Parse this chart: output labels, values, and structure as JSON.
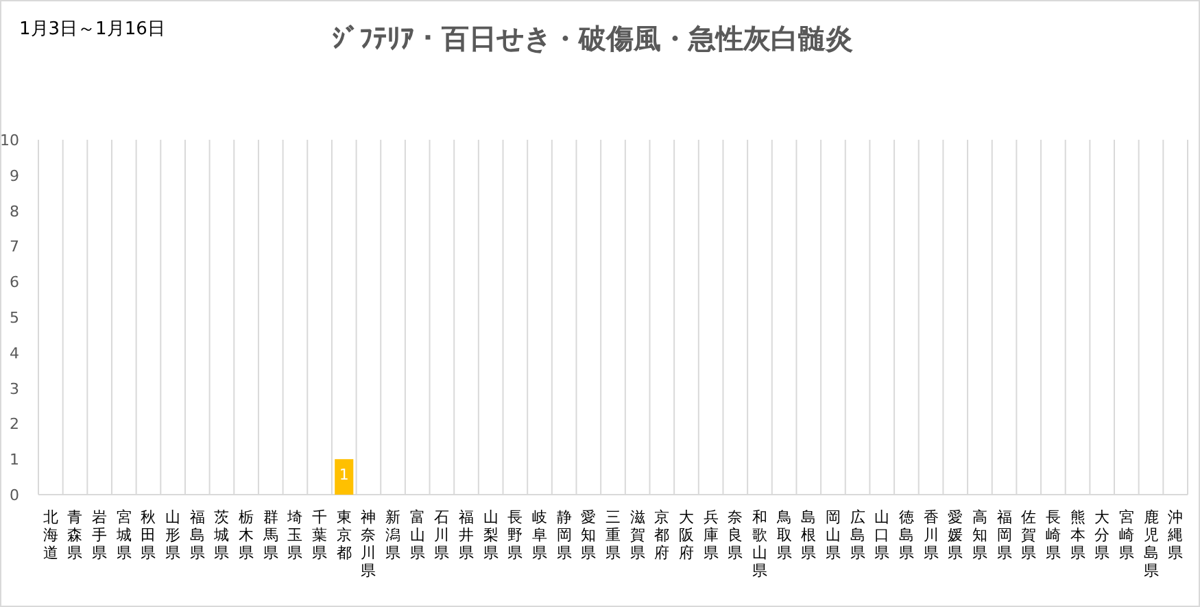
{
  "chart_data": {
    "type": "bar",
    "title": "ｼﾞﾌﾃﾘｱ・百日せき・破傷風・急性灰白髄炎",
    "subtitle": "1月3日～1月16日",
    "categories": [
      "北海道",
      "青森県",
      "岩手県",
      "宮城県",
      "秋田県",
      "山形県",
      "福島県",
      "茨城県",
      "栃木県",
      "群馬県",
      "埼玉県",
      "千葉県",
      "東京都",
      "神奈川県",
      "新潟県",
      "富山県",
      "石川県",
      "福井県",
      "山梨県",
      "長野県",
      "岐阜県",
      "静岡県",
      "愛知県",
      "三重県",
      "滋賀県",
      "京都府",
      "大阪府",
      "兵庫県",
      "奈良県",
      "和歌山県",
      "鳥取県",
      "島根県",
      "岡山県",
      "広島県",
      "山口県",
      "徳島県",
      "香川県",
      "愛媛県",
      "高知県",
      "福岡県",
      "佐賀県",
      "長崎県",
      "熊本県",
      "大分県",
      "宮崎県",
      "鹿児島県",
      "沖縄県"
    ],
    "series": [
      {
        "color": "#ffc000",
        "values": [
          0,
          0,
          0,
          0,
          0,
          0,
          0,
          0,
          0,
          0,
          0,
          0,
          1,
          0,
          0,
          0,
          0,
          0,
          0,
          0,
          0,
          0,
          0,
          0,
          0,
          0,
          0,
          0,
          0,
          0,
          0,
          0,
          0,
          0,
          0,
          0,
          0,
          0,
          0,
          0,
          0,
          0,
          0,
          0,
          0,
          0,
          0
        ],
        "value_labels": [
          null,
          null,
          null,
          null,
          null,
          null,
          null,
          null,
          null,
          null,
          null,
          null,
          "1",
          null,
          null,
          null,
          null,
          null,
          null,
          null,
          null,
          null,
          null,
          null,
          null,
          null,
          null,
          null,
          null,
          null,
          null,
          null,
          null,
          null,
          null,
          null,
          null,
          null,
          null,
          null,
          null,
          null,
          null,
          null,
          null,
          null,
          null
        ]
      }
    ],
    "ylim": [
      0,
      10
    ],
    "yticks": [
      0,
      1,
      2,
      3,
      4,
      5,
      6,
      7,
      8,
      9,
      10
    ],
    "grid": "x"
  }
}
